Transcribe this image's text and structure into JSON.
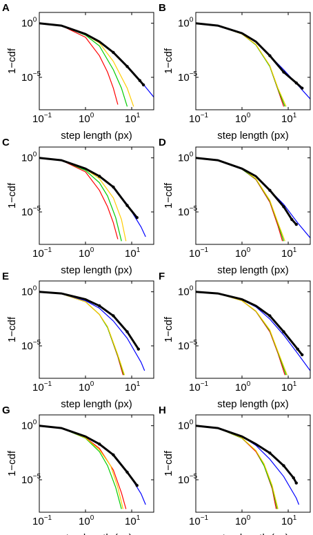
{
  "figure": {
    "panels": [
      "A",
      "B",
      "C",
      "D",
      "E",
      "F",
      "G",
      "H"
    ]
  },
  "chart_data": [
    {
      "panel": "A",
      "type": "line",
      "log_x": true,
      "log_y": true,
      "xlabel": "step length (px)",
      "ylabel": "1−cdf",
      "xlim": [
        0.1,
        30
      ],
      "ylim": [
        1e-08,
        10
      ],
      "x_ticks": [
        "10^-1",
        "10^0",
        "10^1"
      ],
      "y_ticks": [
        "10^0",
        "10^-5"
      ],
      "empirical": {
        "x": [
          0.1,
          0.3,
          1,
          2,
          4,
          8,
          15,
          18
        ],
        "y": [
          1,
          0.6,
          0.1,
          0.02,
          0.002,
          0.0001,
          5e-06,
          2e-06
        ]
      },
      "fits": [
        {
          "color": "#ff0000",
          "x": [
            0.1,
            0.3,
            1,
            2,
            3,
            4,
            5
          ],
          "y": [
            1,
            0.6,
            0.05,
            0.001,
            3e-05,
            1e-06,
            3e-08
          ]
        },
        {
          "color": "#00cc00",
          "x": [
            0.1,
            0.3,
            1,
            2,
            4,
            6,
            8
          ],
          "y": [
            1,
            0.6,
            0.08,
            0.008,
            5e-05,
            1e-06,
            2e-08
          ]
        },
        {
          "color": "#ffcc00",
          "x": [
            0.1,
            0.3,
            1,
            2,
            4,
            8,
            11
          ],
          "y": [
            1,
            0.6,
            0.09,
            0.015,
            0.0003,
            1e-06,
            2e-08
          ]
        },
        {
          "color": "#0000ff",
          "x": [
            0.1,
            0.3,
            1,
            2,
            4,
            8,
            16,
            30
          ],
          "y": [
            1,
            0.6,
            0.1,
            0.02,
            0.002,
            0.0001,
            4e-06,
            1.5e-07
          ]
        }
      ]
    },
    {
      "panel": "B",
      "type": "line",
      "log_x": true,
      "log_y": true,
      "xlabel": "step length (px)",
      "ylabel": "1−cdf",
      "xlim": [
        0.1,
        30
      ],
      "ylim": [
        1e-08,
        10
      ],
      "x_ticks": [
        "10^-1",
        "10^0",
        "10^1"
      ],
      "y_ticks": [
        "10^0",
        "10^-5"
      ],
      "empirical": {
        "x": [
          0.1,
          0.3,
          1,
          2,
          4,
          8,
          15,
          20
        ],
        "y": [
          1,
          0.6,
          0.12,
          0.02,
          0.001,
          3e-05,
          3e-06,
          1e-06
        ]
      },
      "fits": [
        {
          "color": "#ff0000",
          "x": [
            0.1,
            0.3,
            1,
            2,
            4,
            6,
            8
          ],
          "y": [
            1,
            0.6,
            0.1,
            0.01,
            0.0001,
            7e-07,
            2e-08
          ]
        },
        {
          "color": "#00cc00",
          "x": [
            0.1,
            0.3,
            1,
            2,
            4,
            6,
            8.5
          ],
          "y": [
            1,
            0.6,
            0.1,
            0.01,
            0.0001,
            8e-07,
            2e-08
          ]
        },
        {
          "color": "#ffcc00",
          "x": [
            0.1,
            0.3,
            1,
            2,
            4,
            6,
            9
          ],
          "y": [
            1,
            0.6,
            0.1,
            0.011,
            0.00012,
            1e-06,
            2e-08
          ]
        },
        {
          "color": "#0000ff",
          "x": [
            0.1,
            0.3,
            1,
            2,
            4,
            8,
            16,
            30
          ],
          "y": [
            1,
            0.6,
            0.12,
            0.02,
            0.001,
            5e-05,
            2e-06,
            1e-07
          ]
        }
      ]
    },
    {
      "panel": "C",
      "type": "line",
      "log_x": true,
      "log_y": true,
      "xlabel": "step length (px)",
      "ylabel": "1−cdf",
      "xlim": [
        0.1,
        30
      ],
      "ylim": [
        1e-08,
        10
      ],
      "x_ticks": [
        "10^-1",
        "10^0",
        "10^1"
      ],
      "y_ticks": [
        "10^0",
        "10^-5"
      ],
      "empirical": {
        "x": [
          0.1,
          0.3,
          1,
          2,
          4,
          8,
          13
        ],
        "y": [
          1,
          0.6,
          0.1,
          0.02,
          0.002,
          4e-05,
          3e-06
        ]
      },
      "fits": [
        {
          "color": "#ff0000",
          "x": [
            0.1,
            0.3,
            1,
            2,
            3,
            4,
            5
          ],
          "y": [
            1,
            0.6,
            0.05,
            0.001,
            3e-05,
            1e-06,
            3e-08
          ]
        },
        {
          "color": "#00cc00",
          "x": [
            0.1,
            0.3,
            1,
            2,
            3,
            4.5,
            6
          ],
          "y": [
            1,
            0.6,
            0.07,
            0.005,
            0.0003,
            3e-06,
            2e-08
          ]
        },
        {
          "color": "#ffcc00",
          "x": [
            0.1,
            0.3,
            1,
            2,
            4,
            6,
            7.5
          ],
          "y": [
            1,
            0.6,
            0.09,
            0.012,
            0.0002,
            2e-06,
            2e-08
          ]
        },
        {
          "color": "#0000ff",
          "x": [
            0.1,
            0.3,
            1,
            2,
            4,
            8,
            16,
            20
          ],
          "y": [
            1,
            0.6,
            0.1,
            0.02,
            0.002,
            5e-05,
            4e-07,
            5e-08
          ]
        }
      ]
    },
    {
      "panel": "D",
      "type": "line",
      "log_x": true,
      "log_y": true,
      "xlabel": "step length (px)",
      "ylabel": "1−cdf",
      "xlim": [
        0.1,
        30
      ],
      "ylim": [
        1e-08,
        10
      ],
      "x_ticks": [
        "10^-1",
        "10^0",
        "10^1"
      ],
      "y_ticks": [
        "10^0",
        "10^-5"
      ],
      "empirical": {
        "x": [
          0.1,
          0.3,
          1,
          2,
          4,
          8,
          12,
          15
        ],
        "y": [
          1,
          0.6,
          0.1,
          0.02,
          0.001,
          3e-05,
          2e-06,
          7e-07
        ]
      },
      "fits": [
        {
          "color": "#ff0000",
          "x": [
            0.1,
            0.3,
            1,
            2,
            4,
            6,
            7.5
          ],
          "y": [
            1,
            0.6,
            0.09,
            0.01,
            8e-05,
            5e-07,
            2e-08
          ]
        },
        {
          "color": "#00cc00",
          "x": [
            0.1,
            0.3,
            1,
            2,
            4,
            6,
            8
          ],
          "y": [
            1,
            0.6,
            0.09,
            0.011,
            0.0001,
            8e-07,
            2e-08
          ]
        },
        {
          "color": "#ffcc00",
          "x": [
            0.1,
            0.3,
            1,
            2,
            4,
            6,
            8.5
          ],
          "y": [
            1,
            0.6,
            0.1,
            0.012,
            0.00012,
            1e-06,
            2e-08
          ]
        },
        {
          "color": "#0000ff",
          "x": [
            0.1,
            0.3,
            1,
            2,
            4,
            8,
            16,
            30
          ],
          "y": [
            1,
            0.6,
            0.1,
            0.02,
            0.001,
            5e-05,
            1e-06,
            4e-08
          ]
        }
      ]
    },
    {
      "panel": "E",
      "type": "line",
      "log_x": true,
      "log_y": true,
      "xlabel": "step length (px)",
      "ylabel": "1−cdf",
      "xlim": [
        0.1,
        30
      ],
      "ylim": [
        1e-08,
        10
      ],
      "x_ticks": [
        "10^-1",
        "10^0",
        "10^1"
      ],
      "y_ticks": [
        "10^0",
        "10^-5"
      ],
      "empirical": {
        "x": [
          0.1,
          0.3,
          1,
          2,
          4,
          8,
          14
        ],
        "y": [
          1,
          0.7,
          0.2,
          0.05,
          0.006,
          0.0002,
          5e-06
        ]
      },
      "fits": [
        {
          "color": "#ff0000",
          "x": [
            0.1,
            0.3,
            1,
            2,
            3,
            5,
            6.5
          ],
          "y": [
            1,
            0.65,
            0.12,
            0.008,
            0.0005,
            1e-06,
            2e-08
          ]
        },
        {
          "color": "#00cc00",
          "x": [
            0.1,
            0.3,
            1,
            2,
            3,
            5,
            6.8
          ],
          "y": [
            1,
            0.65,
            0.12,
            0.008,
            0.0005,
            1.2e-06,
            2e-08
          ]
        },
        {
          "color": "#ffcc00",
          "x": [
            0.1,
            0.3,
            1,
            2,
            3,
            5,
            7
          ],
          "y": [
            1,
            0.65,
            0.12,
            0.008,
            0.0006,
            1.5e-06,
            2e-08
          ]
        },
        {
          "color": "#0000ff",
          "x": [
            0.1,
            0.3,
            1,
            2,
            4,
            8,
            16,
            19
          ],
          "y": [
            1,
            0.65,
            0.15,
            0.03,
            0.002,
            5e-05,
            3e-07,
            5e-08
          ]
        }
      ]
    },
    {
      "panel": "F",
      "type": "line",
      "log_x": true,
      "log_y": true,
      "xlabel": "step length (px)",
      "ylabel": "1−cdf",
      "xlim": [
        0.1,
        30
      ],
      "ylim": [
        1e-08,
        10
      ],
      "x_ticks": [
        "10^-1",
        "10^0",
        "10^1"
      ],
      "y_ticks": [
        "10^0",
        "10^-5"
      ],
      "empirical": {
        "x": [
          0.1,
          0.3,
          1,
          2,
          4,
          8,
          16,
          20
        ],
        "y": [
          1,
          0.7,
          0.2,
          0.05,
          0.006,
          0.0002,
          5e-06,
          1.5e-06
        ]
      },
      "fits": [
        {
          "color": "#ff0000",
          "x": [
            0.1,
            0.3,
            1,
            2,
            4,
            6,
            8.5
          ],
          "y": [
            1,
            0.7,
            0.15,
            0.015,
            0.0002,
            2e-06,
            2e-08
          ]
        },
        {
          "color": "#00cc00",
          "x": [
            0.1,
            0.3,
            1,
            2,
            4,
            6,
            9
          ],
          "y": [
            1,
            0.7,
            0.15,
            0.016,
            0.00025,
            2.5e-06,
            2e-08
          ]
        },
        {
          "color": "#ffcc00",
          "x": [
            0.1,
            0.3,
            1,
            2,
            4,
            6,
            9.5
          ],
          "y": [
            1,
            0.7,
            0.15,
            0.017,
            0.0003,
            3e-06,
            2e-08
          ]
        },
        {
          "color": "#0000ff",
          "x": [
            0.1,
            0.3,
            1,
            2,
            4,
            8,
            16,
            30
          ],
          "y": [
            1,
            0.7,
            0.18,
            0.04,
            0.003,
            0.0001,
            2e-06,
            5e-08
          ]
        }
      ]
    },
    {
      "panel": "G",
      "type": "line",
      "log_x": true,
      "log_y": true,
      "xlabel": "step length (px)",
      "ylabel": "1−cdf",
      "xlim": [
        0.1,
        30
      ],
      "ylim": [
        1e-08,
        10
      ],
      "x_ticks": [
        "10^-1",
        "10^0",
        "10^1"
      ],
      "y_ticks": [
        "10^0",
        "10^-5"
      ],
      "empirical": {
        "x": [
          0.1,
          0.3,
          1,
          2,
          4,
          8,
          13
        ],
        "y": [
          1,
          0.6,
          0.1,
          0.02,
          0.002,
          5e-05,
          3e-06
        ]
      },
      "fits": [
        {
          "color": "#ff0000",
          "x": [
            0.1,
            0.3,
            1,
            2,
            4,
            6,
            7.5
          ],
          "y": [
            1,
            0.6,
            0.08,
            0.008,
            8e-05,
            6e-07,
            2e-08
          ]
        },
        {
          "color": "#00cc00",
          "x": [
            0.1,
            0.3,
            1,
            2,
            3,
            4.5,
            6
          ],
          "y": [
            1,
            0.6,
            0.07,
            0.004,
            0.0002,
            2e-06,
            2e-08
          ]
        },
        {
          "color": "#ffcc00",
          "x": [
            0.1,
            0.3,
            1,
            2,
            3.5,
            5,
            6.5
          ],
          "y": [
            1,
            0.6,
            0.075,
            0.006,
            0.0002,
            2e-06,
            2e-08
          ]
        },
        {
          "color": "#0000ff",
          "x": [
            0.1,
            0.3,
            1,
            2,
            4,
            8,
            16,
            20
          ],
          "y": [
            1,
            0.6,
            0.1,
            0.02,
            0.002,
            6e-05,
            5e-07,
            5e-08
          ]
        }
      ]
    },
    {
      "panel": "H",
      "type": "line",
      "log_x": true,
      "log_y": true,
      "xlabel": "step length (px)",
      "ylabel": "1−cdf",
      "xlim": [
        0.1,
        30
      ],
      "ylim": [
        1e-08,
        10
      ],
      "x_ticks": [
        "10^-1",
        "10^0",
        "10^1"
      ],
      "y_ticks": [
        "10^0",
        "10^-5"
      ],
      "empirical": {
        "x": [
          0.1,
          0.3,
          1,
          2,
          4,
          8,
          13,
          15
        ],
        "y": [
          1,
          0.6,
          0.1,
          0.02,
          0.003,
          0.0002,
          1.5e-05,
          5e-06
        ]
      },
      "fits": [
        {
          "color": "#ff0000",
          "x": [
            0.1,
            0.3,
            1,
            2,
            3,
            4.5,
            5.5
          ],
          "y": [
            1,
            0.6,
            0.07,
            0.004,
            0.0002,
            1.5e-06,
            2e-08
          ]
        },
        {
          "color": "#00cc00",
          "x": [
            0.1,
            0.3,
            1,
            2,
            3,
            4.5,
            5.8
          ],
          "y": [
            1,
            0.6,
            0.07,
            0.005,
            0.0002,
            2e-06,
            2e-08
          ]
        },
        {
          "color": "#ffcc00",
          "x": [
            0.1,
            0.3,
            1,
            2,
            3,
            4.5,
            6
          ],
          "y": [
            1,
            0.6,
            0.075,
            0.005,
            0.0003,
            3e-06,
            2e-08
          ]
        },
        {
          "color": "#0000ff",
          "x": [
            0.1,
            0.3,
            1,
            2,
            4,
            8,
            15,
            17
          ],
          "y": [
            1,
            0.6,
            0.1,
            0.015,
            0.0008,
            2e-05,
            2e-07,
            5e-08
          ]
        }
      ]
    }
  ]
}
